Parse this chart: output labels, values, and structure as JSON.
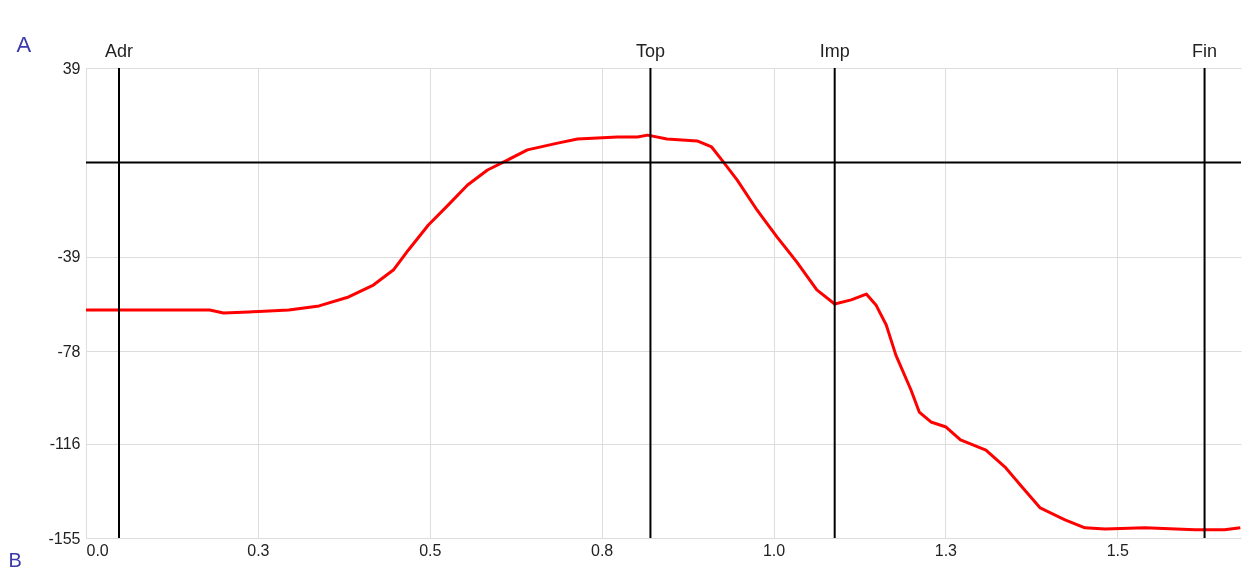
{
  "chart_data": {
    "type": "line",
    "xlabel": "B",
    "ylabel": "A",
    "x": [
      0,
      0.18,
      0.2,
      0.237,
      0.295,
      0.339,
      0.382,
      0.418,
      0.447,
      0.469,
      0.498,
      0.527,
      0.555,
      0.584,
      0.613,
      0.642,
      0.686,
      0.715,
      0.773,
      0.802,
      0.817,
      0.845,
      0.889,
      0.91,
      0.925,
      0.947,
      0.976,
      1.005,
      1.034,
      1.063,
      1.089,
      1.113,
      1.135,
      1.149,
      1.164,
      1.178,
      1.2,
      1.212,
      1.229,
      1.251,
      1.272,
      1.309,
      1.338,
      1.359,
      1.388,
      1.424,
      1.453,
      1.482,
      1.54,
      1.613,
      1.656,
      1.679
    ],
    "series": [
      {
        "color": "#ff0000",
        "values": [
          -60.9,
          -60.9,
          -62.1,
          -61.7,
          -60.9,
          -59.2,
          -55.5,
          -50.6,
          -44.4,
          -36.1,
          -25.8,
          -17.5,
          -9.3,
          -3.1,
          1.0,
          5.2,
          8.0,
          9.7,
          10.5,
          10.5,
          11.3,
          9.7,
          8.9,
          6.4,
          1.0,
          -7.2,
          -19.6,
          -30.7,
          -41.1,
          -52.6,
          -58.4,
          -56.7,
          -54.3,
          -58.8,
          -67.1,
          -79.5,
          -93.9,
          -103,
          -107.1,
          -109.2,
          -114.5,
          -118.7,
          -126.1,
          -133.1,
          -142.6,
          -147.5,
          -150.8,
          -151.3,
          -150.8,
          -151.6,
          -151.6,
          -150.8
        ]
      }
    ],
    "xlim": [
      0,
      1.68
    ],
    "ylim": [
      -155,
      39
    ],
    "xticks": [
      {
        "value": 0,
        "label": "0.0"
      },
      {
        "value": 0.25,
        "label": "0.3"
      },
      {
        "value": 0.5,
        "label": "0.5"
      },
      {
        "value": 0.75,
        "label": "0.8"
      },
      {
        "value": 1,
        "label": "1.0"
      },
      {
        "value": 1.25,
        "label": "1.3"
      },
      {
        "value": 1.5,
        "label": "1.5"
      }
    ],
    "yticks": [
      39,
      -39,
      -78,
      -116,
      -155
    ],
    "grid": true,
    "ref_lines": [
      {
        "axis": "y",
        "value": 0,
        "label": null,
        "color": "#000000"
      },
      {
        "axis": "x",
        "value": 0.048,
        "label": "Adr",
        "color": "#000000"
      },
      {
        "axis": "x",
        "value": 0.821,
        "label": "Top",
        "color": "#000000"
      },
      {
        "axis": "x",
        "value": 1.089,
        "label": "Imp",
        "color": "#000000"
      },
      {
        "axis": "x",
        "value": 1.627,
        "label": "Fin",
        "color": "#000000"
      }
    ]
  }
}
